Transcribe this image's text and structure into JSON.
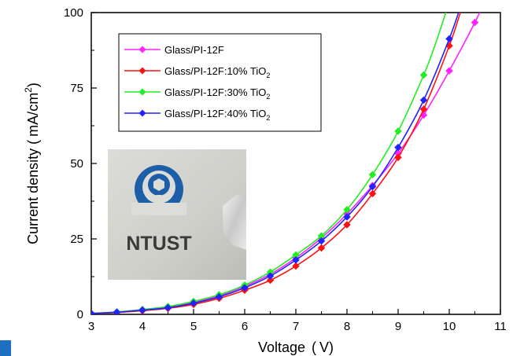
{
  "chart_data": {
    "type": "line",
    "xlabel_main": "Voltage",
    "xlabel_unit": "V",
    "ylabel_main": "Current density",
    "ylabel_unit": "mA/cm",
    "ylabel_sup": "2",
    "xlim": [
      3,
      11
    ],
    "ylim": [
      0,
      100
    ],
    "xticks": [
      "3",
      "4",
      "5",
      "6",
      "7",
      "8",
      "9",
      "10",
      "11"
    ],
    "yticks": [
      "0",
      "25",
      "50",
      "75",
      "100"
    ],
    "grid": false,
    "legend_position": "top-left",
    "series": [
      {
        "name": "Glass/PI-12F",
        "name_sub": "",
        "color": "#ff22ff",
        "x": [
          3,
          3.5,
          4,
          4.5,
          5,
          5.5,
          6,
          6.5,
          7,
          7.5,
          8,
          8.5,
          9,
          9.5,
          10,
          10.5
        ],
        "y": [
          0.3,
          0.8,
          1.6,
          2.5,
          4.0,
          6.2,
          9.3,
          13.3,
          18.7,
          25.3,
          33.3,
          42.7,
          53.3,
          66.0,
          80.7,
          96.7
        ]
      },
      {
        "name": "Glass/PI-12F:10% TiO",
        "name_sub": "2",
        "color": "#ff1111",
        "x": [
          3,
          3.5,
          4,
          4.5,
          5,
          5.5,
          6,
          6.5,
          7,
          7.5,
          8,
          8.5,
          9,
          9.5,
          10
        ],
        "y": [
          0.3,
          0.6,
          1.2,
          2.0,
          3.3,
          5.3,
          8.0,
          11.3,
          16.0,
          22.0,
          29.7,
          40.0,
          52.0,
          68.0,
          89.0
        ]
      },
      {
        "name": "Glass/PI-12F:30% TiO",
        "name_sub": "2",
        "color": "#22ee22",
        "x": [
          3,
          3.5,
          4,
          4.5,
          5,
          5.5,
          6,
          6.5,
          7,
          7.5,
          8,
          8.5,
          9,
          9.5
        ],
        "y": [
          0.3,
          0.8,
          1.6,
          2.6,
          4.3,
          6.5,
          9.7,
          14.0,
          19.7,
          26.0,
          34.7,
          46.3,
          60.7,
          79.3
        ]
      },
      {
        "name": "Glass/PI-12F:40% TiO",
        "name_sub": "2",
        "color": "#2222ff",
        "x": [
          3,
          3.5,
          4,
          4.5,
          5,
          5.5,
          6,
          6.5,
          7,
          7.5,
          8,
          8.5,
          9,
          9.5,
          10
        ],
        "y": [
          0.3,
          0.7,
          1.4,
          2.2,
          3.7,
          5.8,
          8.8,
          12.7,
          18.0,
          24.3,
          32.3,
          42.3,
          55.3,
          71.0,
          91.3
        ]
      }
    ],
    "inset_logo_text": "NTUST"
  }
}
